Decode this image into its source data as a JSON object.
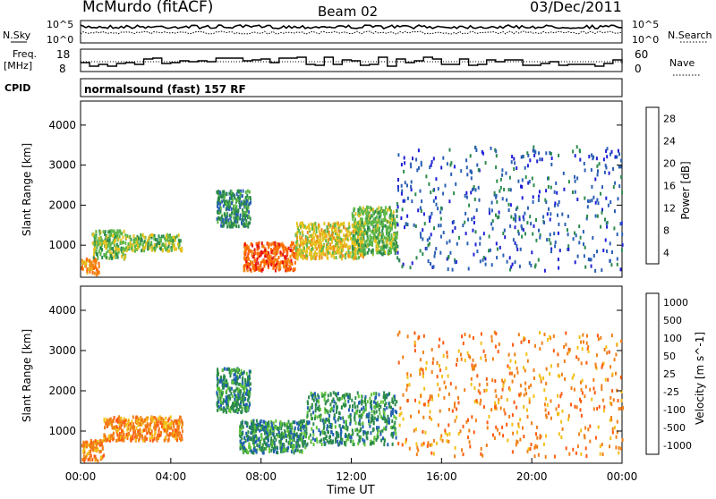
{
  "header": {
    "station": "McMurdo (fitACF)",
    "beam": "Beam 02",
    "date": "03/Dec/2011"
  },
  "noise_panel": {
    "left_label": "N.Sky",
    "right_label": "N.Search",
    "ticks": [
      "10^5",
      "10^0"
    ]
  },
  "freq_panel": {
    "left_label_line1": "Freq.",
    "left_label_line2": "[MHz]",
    "left_ticks": [
      "18",
      "8"
    ],
    "right_label": "Nave",
    "right_ticks": [
      "60",
      "0"
    ]
  },
  "cpid": {
    "label": "CPID",
    "text": "normalsound (fast) 157 RF"
  },
  "colors": {
    "power_scale": [
      "#1f1fd6",
      "#2a5fb5",
      "#2b8a4c",
      "#5fb84a",
      "#e6c21e",
      "#f08a1a",
      "#ff6a00",
      "#e61010"
    ],
    "velocity_scale": [
      "#2233aa",
      "#1f5fb0",
      "#2b8a4c",
      "#61c43a",
      "#bdbdbd",
      "#f3c017",
      "#f07f18",
      "#ff5a10",
      "#e61010"
    ]
  },
  "chart_data": [
    {
      "type": "heatmap",
      "title": "",
      "ylabel": "Slant Range [km]",
      "yticks": [
        "1000",
        "2000",
        "3000",
        "4000"
      ],
      "ylim": [
        200,
        4600
      ],
      "xlim_hours": [
        0,
        24
      ],
      "colorbar": {
        "label": "Power [dB]",
        "ticks": [
          "4",
          "8",
          "12",
          "16",
          "20",
          "24",
          "28"
        ],
        "range": [
          0,
          30
        ]
      },
      "regions": [
        {
          "t0": 0.0,
          "t1": 0.8,
          "r0": 300,
          "r1": 700,
          "value": 22
        },
        {
          "t0": 0.5,
          "t1": 2.0,
          "r0": 700,
          "r1": 1400,
          "value": 14
        },
        {
          "t0": 2.0,
          "t1": 4.5,
          "r0": 900,
          "r1": 1300,
          "value": 12
        },
        {
          "t0": 6.0,
          "t1": 7.5,
          "r0": 1500,
          "r1": 2400,
          "value": 10
        },
        {
          "t0": 7.2,
          "t1": 9.5,
          "r0": 400,
          "r1": 1100,
          "value": 26
        },
        {
          "t0": 9.5,
          "t1": 12.5,
          "r0": 700,
          "r1": 1600,
          "value": 18
        },
        {
          "t0": 12.0,
          "t1": 14.0,
          "r0": 800,
          "r1": 2000,
          "value": 13
        },
        {
          "t0": 14.0,
          "t1": 24.0,
          "r0": 400,
          "r1": 3500,
          "value": 6
        }
      ]
    },
    {
      "type": "heatmap",
      "title": "",
      "xlabel": "Time UT",
      "ylabel": "Slant Range [km]",
      "xticks": [
        "00:00",
        "04:00",
        "08:00",
        "12:00",
        "16:00",
        "20:00",
        "00:00"
      ],
      "yticks": [
        "1000",
        "2000",
        "3000",
        "4000"
      ],
      "ylim": [
        200,
        4600
      ],
      "xlim_hours": [
        0,
        24
      ],
      "colorbar": {
        "label": "Velocity [m s^-1]",
        "ticks": [
          "1000",
          "500",
          "100",
          "50",
          "25",
          "-25",
          "-100",
          "-500",
          "-1000"
        ],
        "range": [
          -1000,
          1000
        ]
      },
      "regions": [
        {
          "t0": 0.0,
          "t1": 1.0,
          "r0": 300,
          "r1": 800,
          "value": -300
        },
        {
          "t0": 1.0,
          "t1": 4.5,
          "r0": 800,
          "r1": 1400,
          "value": -200
        },
        {
          "t0": 6.0,
          "t1": 7.5,
          "r0": 1500,
          "r1": 2600,
          "value": 80
        },
        {
          "t0": 7.0,
          "t1": 10.0,
          "r0": 500,
          "r1": 1300,
          "value": 80
        },
        {
          "t0": 10.0,
          "t1": 14.0,
          "r0": 700,
          "r1": 2000,
          "value": 90
        },
        {
          "t0": 14.0,
          "t1": 24.0,
          "r0": 400,
          "r1": 3500,
          "value": -150
        }
      ]
    }
  ]
}
